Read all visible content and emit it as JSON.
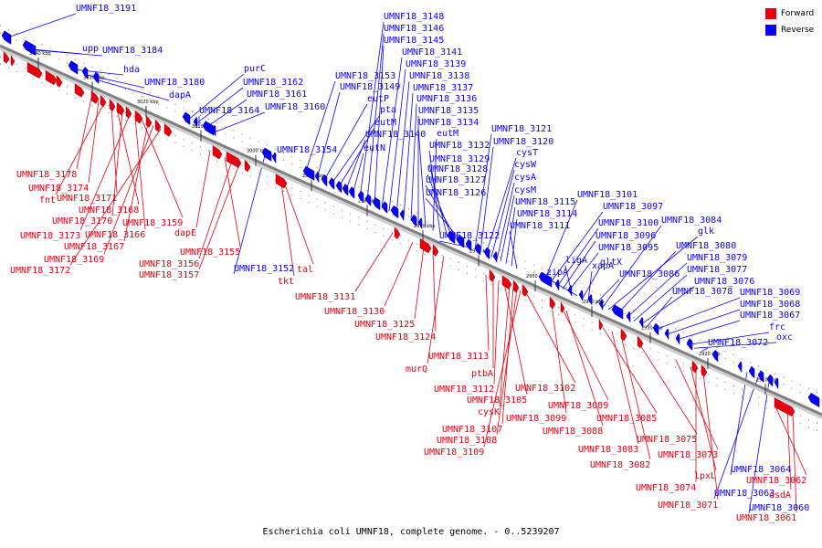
{
  "colors": {
    "forward": "#e8000f",
    "reverse": "#0a00ff",
    "backbone": "#808080"
  },
  "legend": {
    "forward_label": "Forward",
    "reverse_label": "Reverse"
  },
  "caption": "Escherichia coli UMNF18, complete genome. - 0..5239207",
  "ticks": [
    "3040 kbp",
    "3030 kbp",
    "3020 kbp",
    "3010 kbp",
    "3000 kbp",
    "2990 kbp",
    "2980 kbp",
    "2970 kbp",
    "2960 kbp",
    "2950 kbp",
    "2940 kbp",
    "2930 kbp",
    "2920 kbp",
    "2910 kbp"
  ],
  "reverse_labels": [
    "UMNF18_3191",
    "upp",
    "UMNF18_3184",
    "hda",
    "UMNF18_3180",
    "dapA",
    "purC",
    "UMNF18_3162",
    "UMNF18_3161",
    "UMNF18_3164",
    "UMNF18_3160",
    "UMNF18_3154",
    "UMNF18_3153",
    "UMNF18_3149",
    "eutP",
    "pta",
    "eutM",
    "UMNF18_3140",
    "eutN",
    "UMNF18_3148",
    "UMNF18_3146",
    "UMNF18_3145",
    "UMNF18_3141",
    "UMNF18_3139",
    "UMNF18_3138",
    "UMNF18_3137",
    "UMNF18_3136",
    "UMNF18_3135",
    "UMNF18_3134",
    "eutM",
    "UMNF18_3132",
    "UMNF18_3129",
    "UMNF18_3128",
    "UMNF18_3127",
    "UMNF18_3126",
    "UMNF18_3122",
    "UMNF18_3121",
    "UMNF18_3120",
    "cysT",
    "cysW",
    "cysA",
    "cysM",
    "UMNF18_3115",
    "UMNF18_3114",
    "UMNF18_3111",
    "UMNF18_3101",
    "UMNF18_3097",
    "UMNF18_3100",
    "UMNF18_3096",
    "UMNF18_3095",
    "ligA",
    "zipA",
    "gltX",
    "xapA",
    "UMNF18_3086",
    "UMNF18_3084",
    "glk",
    "UMNF18_3080",
    "UMNF18_3079",
    "UMNF18_3077",
    "UMNF18_3076",
    "UMNF18_3078",
    "UMNF18_3069",
    "UMNF18_3068",
    "UMNF18_3067",
    "frc",
    "oxc",
    "UMNF18_3072",
    "UMNF18_3064",
    "UMNF18_3063",
    "UMNF18_3060",
    "UMNF18_3152"
  ],
  "forward_labels": [
    "UMNF18_3178",
    "UMNF18_3174",
    "fnt",
    "UMNF18_3171",
    "UMNF18_3168",
    "UMNF18_3170",
    "UMNF18_3173",
    "UMNF18_3166",
    "UMNF18_3159",
    "UMNF18_3167",
    "UMNF18_3169",
    "UMNF18_3172",
    "dapE",
    "UMNF18_3155",
    "UMNF18_3156",
    "UMNF18_3157",
    "tkt",
    "tal",
    "UMNF18_3131",
    "UMNF18_3130",
    "UMNF18_3125",
    "UMNF18_3124",
    "murQ",
    "UMNF18_3113",
    "ptbA",
    "UMNF18_3112",
    "UMNF18_3105",
    "cysK",
    "UMNF18_3107",
    "UMNF18_3108",
    "UMNF18_3109",
    "UMNF18_3102",
    "UMNF18_3099",
    "UMNF18_3089",
    "UMNF18_3088",
    "UMNF18_3085",
    "UMNF18_3083",
    "UMNF18_3082",
    "UMNF18_3075",
    "UMNF18_3073",
    "lpxL",
    "UMNF18_3074",
    "UMNF18_3071",
    "UMNF18_3062",
    "dsdA",
    "UMNF18_3061"
  ]
}
